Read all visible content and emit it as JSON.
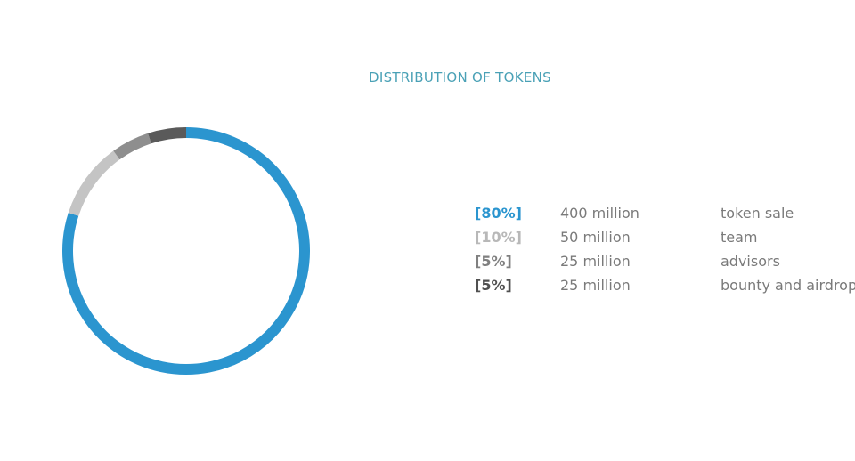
{
  "chart_data": {
    "type": "pie",
    "variant": "donut",
    "title": "DISTRIBUTION OF TOKENS",
    "slices": [
      {
        "percent_label": "[80%]",
        "value": 80,
        "amount": "400 million",
        "label": "token sale",
        "color": "#2b95cf",
        "label_color": "#2b95cf"
      },
      {
        "percent_label": "[10%]",
        "value": 10,
        "amount": "50 million",
        "label": "team",
        "color": "#c4c4c4",
        "label_color": "#b8b8b8"
      },
      {
        "percent_label": "[5%]",
        "value": 5,
        "amount": "25 million",
        "label": "advisors",
        "color": "#8e8e8e",
        "label_color": "#808080"
      },
      {
        "percent_label": "[5%]",
        "value": 5,
        "amount": "25 million",
        "label": "bounty and airdrop",
        "color": "#5a5a5a",
        "label_color": "#505050"
      }
    ]
  }
}
